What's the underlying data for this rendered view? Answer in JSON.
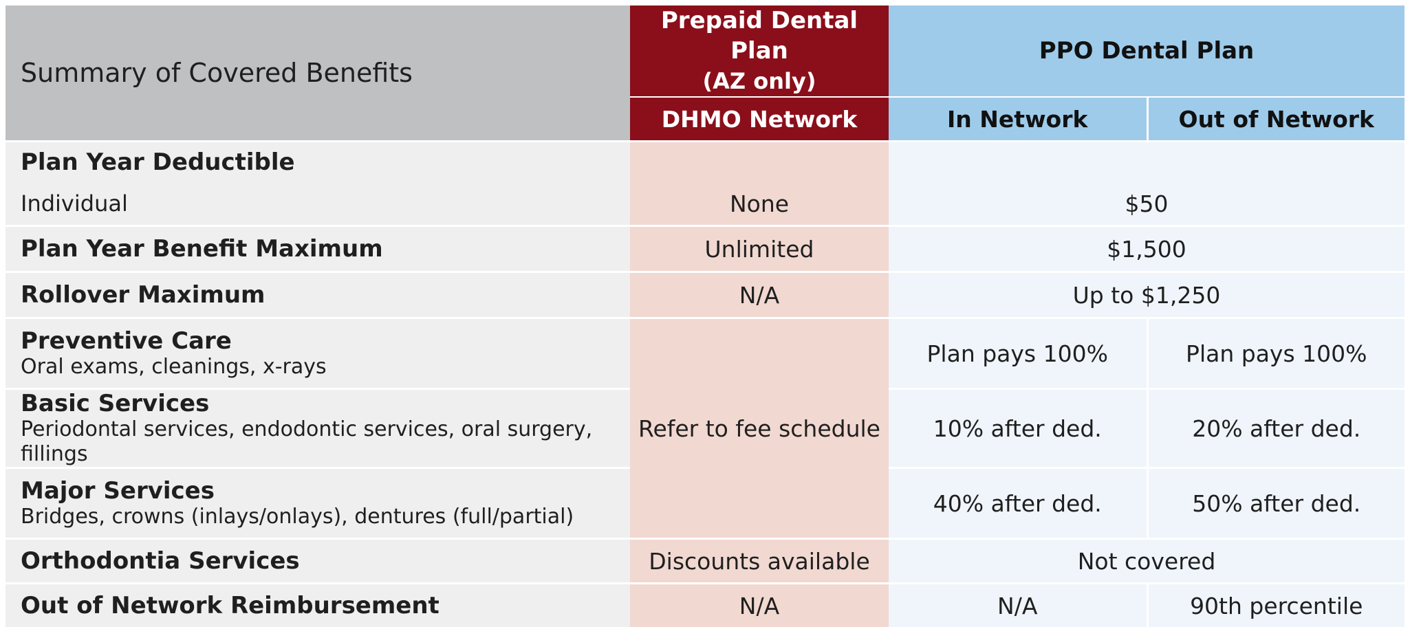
{
  "header": {
    "title": "Summary of Covered Benefits",
    "prepaid_title": "Prepaid Dental Plan",
    "prepaid_subtitle": "(AZ only)",
    "ppo_title": "PPO Dental Plan",
    "dhmo_network": "DHMO Network",
    "in_network": "In Network",
    "out_of_network": "Out of Network"
  },
  "rows": {
    "deductible": {
      "label": "Plan Year Deductible",
      "individual_label": "Individual",
      "dhmo": "None",
      "ppo": "$50"
    },
    "benefit_max": {
      "label": "Plan Year Benefit Maximum",
      "dhmo": "Unlimited",
      "ppo": "$1,500"
    },
    "rollover": {
      "label": "Rollover Maximum",
      "dhmo": "N/A",
      "ppo": "Up to $1,250"
    },
    "preventive": {
      "label": "Preventive Care",
      "sub": "Oral exams, cleanings, x-rays",
      "in": "Plan pays 100%",
      "out": "Plan pays 100%"
    },
    "basic": {
      "label": "Basic Services",
      "sub": "Periodontal services, endodontic services, oral surgery, fillings",
      "in": "10% after ded.",
      "out": "20% after ded."
    },
    "major": {
      "label": "Major Services",
      "sub": "Bridges, crowns (inlays/onlays), dentures (full/partial)",
      "in": "40% after ded.",
      "out": "50% after ded."
    },
    "services_dhmo": "Refer to fee schedule",
    "ortho": {
      "label": "Orthodontia Services",
      "dhmo": "Discounts available",
      "ppo": "Not covered"
    },
    "oon_reimb": {
      "label": "Out of Network Reimbursement",
      "dhmo": "N/A",
      "in": "N/A",
      "out": "90th percentile"
    }
  },
  "colors": {
    "header_gray": "#bfc0c2",
    "prepaid_red": "#8a0f1a",
    "ppo_blue": "#9ecbea",
    "label_bg": "#efefef",
    "dhmo_bg": "#f1d8d1",
    "ppo_bg": "#eff5fb"
  }
}
